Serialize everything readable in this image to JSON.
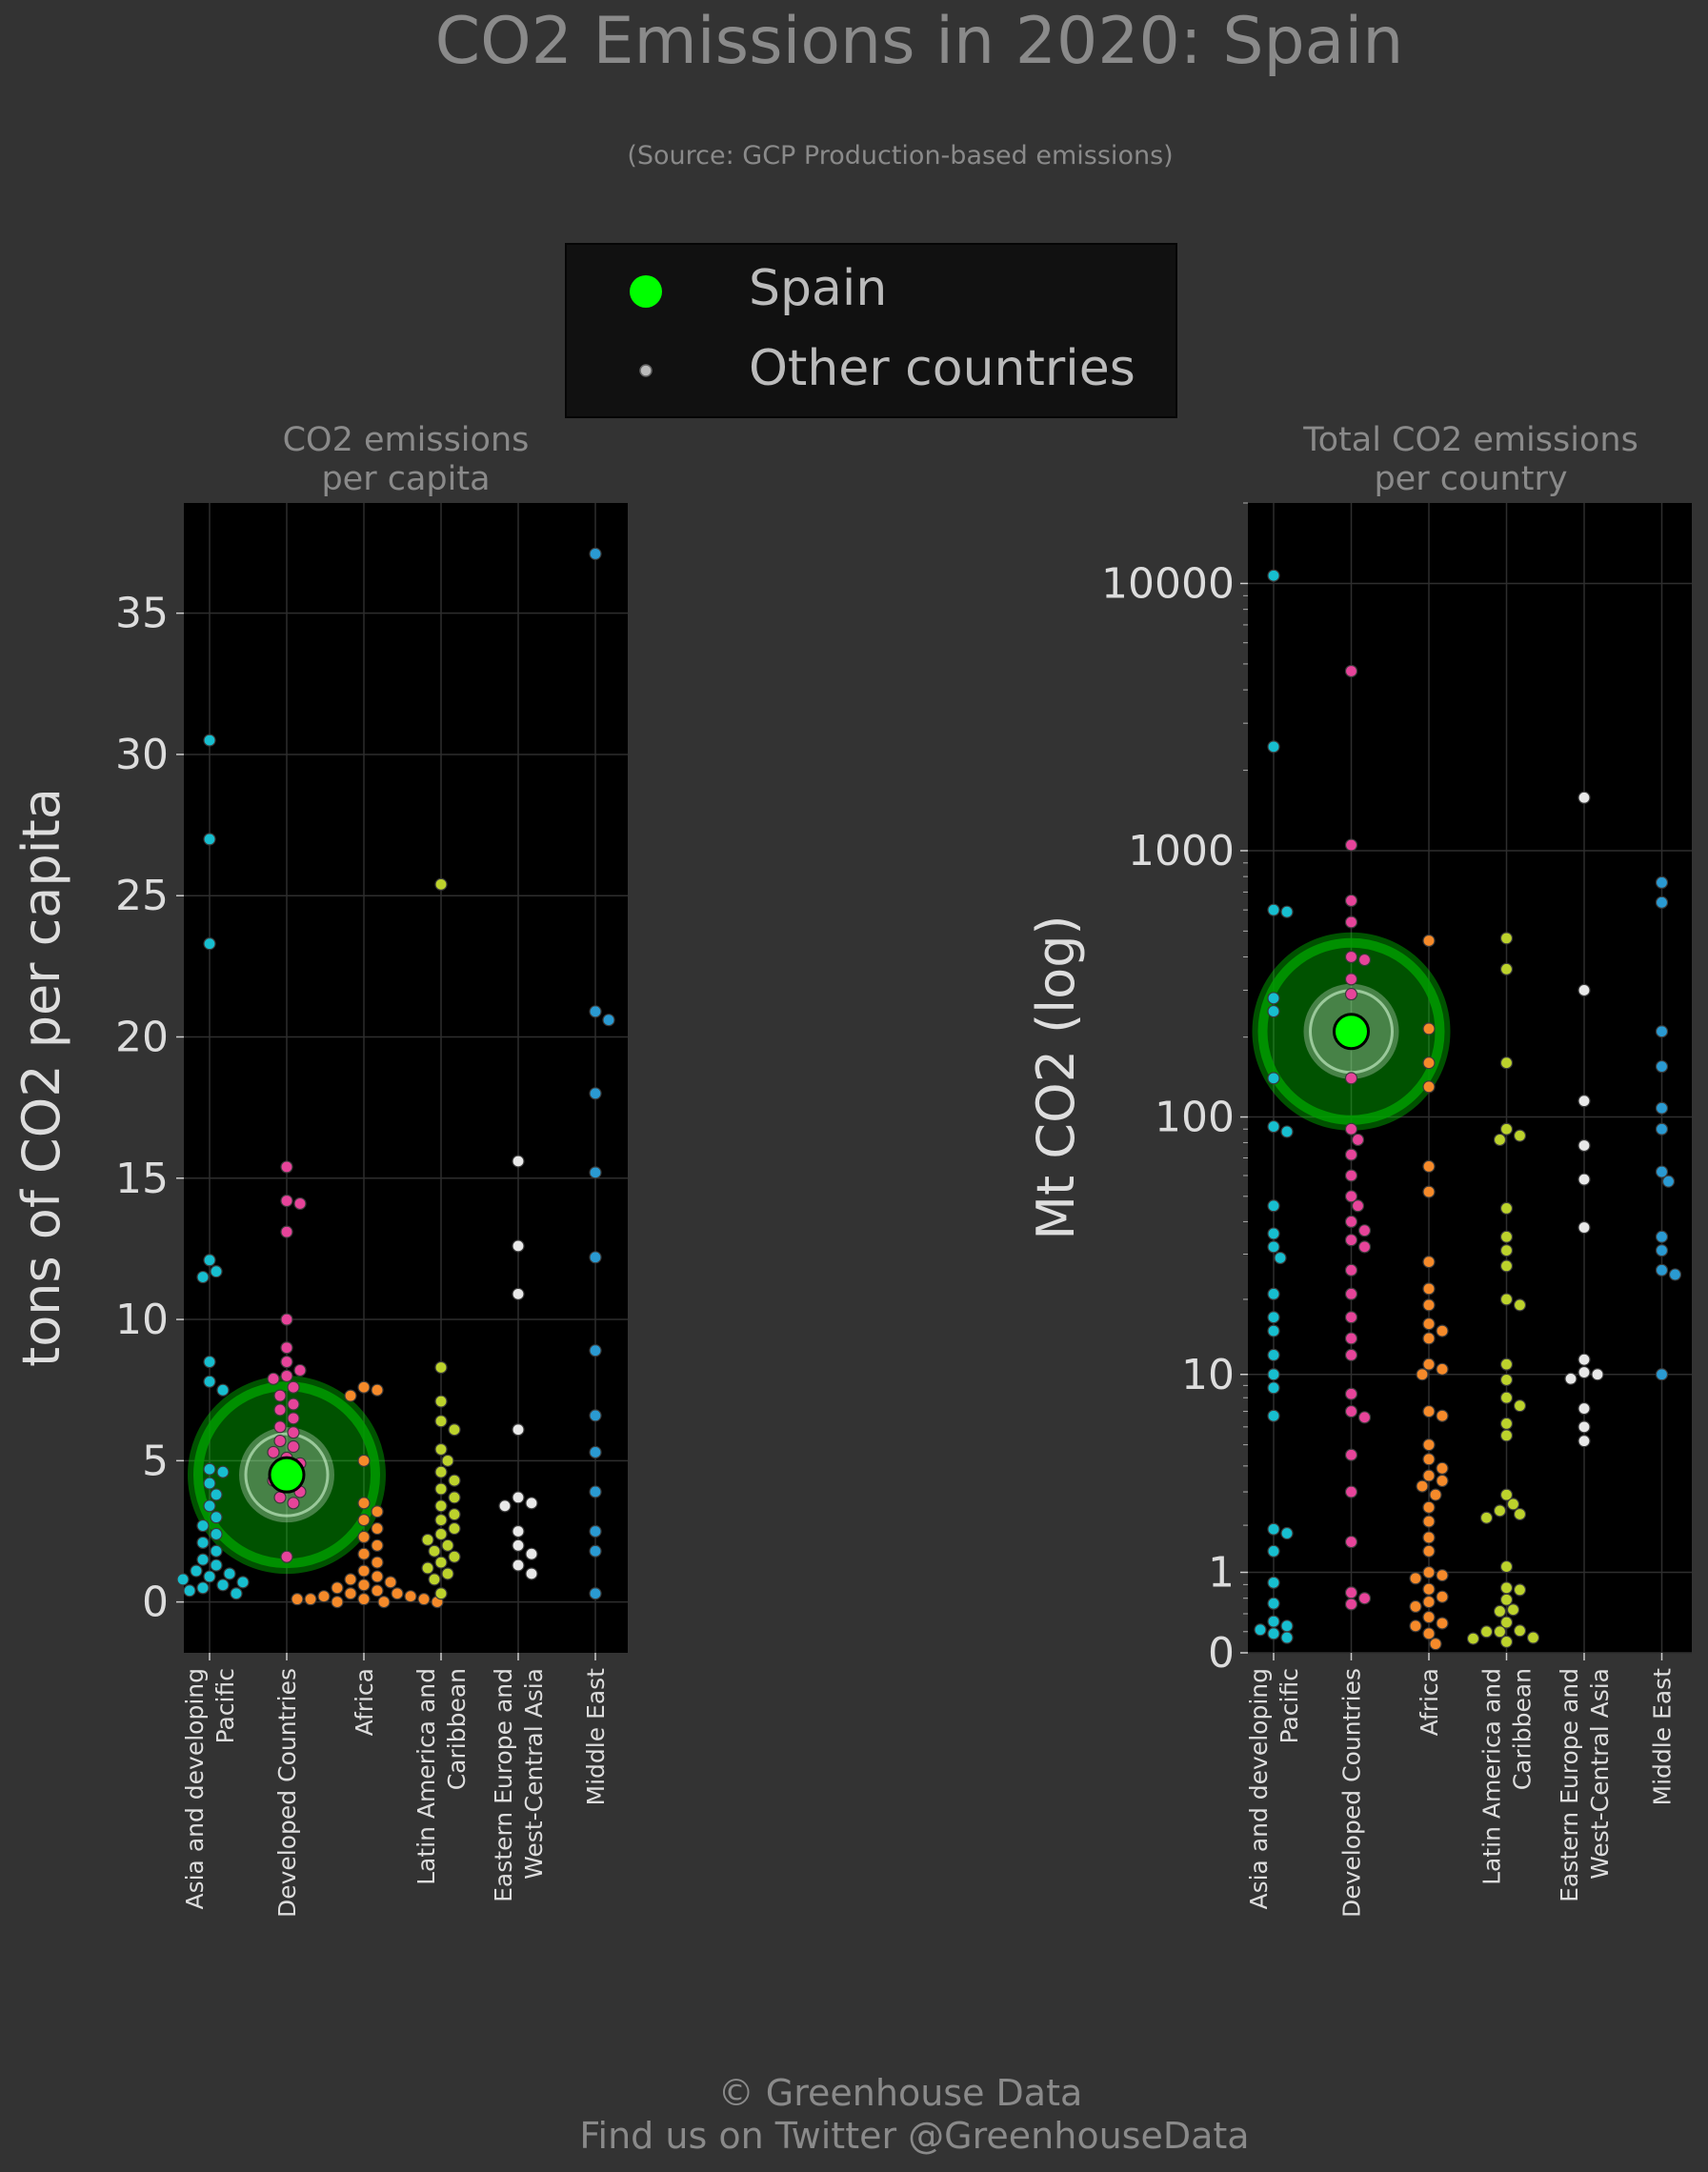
{
  "header": {
    "title": "CO2 Emissions in 2020: Spain",
    "subtitle": "(Source: GCP Production-based emissions)"
  },
  "legend": {
    "highlight_label": "Spain",
    "others_label": "Other countries",
    "highlight_color": "#00ff00",
    "others_color": "#bbbbbb"
  },
  "footer": {
    "line1": "© Greenhouse Data",
    "line2": "Find us on Twitter @GreenhouseData"
  },
  "colors": {
    "Asia and developing Pacific": "#17becf",
    "Developed Countries": "#e6449a",
    "Africa": "#f58a2a",
    "Latin America and Caribbean": "#bcd22c",
    "Eastern Europe and West-Central Asia": "#e8e8e8",
    "Middle East": "#2a9ad2"
  },
  "chart_data": [
    {
      "type": "scatter",
      "title": "CO2 emissions\nper capita",
      "ylabel": "tons of CO2 per capita",
      "yscale": "linear",
      "ylim": [
        -1.8,
        38.9
      ],
      "yticks": [
        0,
        5,
        10,
        15,
        20,
        25,
        30,
        35
      ],
      "ytick_labels": [
        "0",
        "5",
        "10",
        "15",
        "20",
        "25",
        "30",
        "35"
      ],
      "categories": [
        "Asia and developing\nPacific",
        "Developed Countries",
        "Africa",
        "Latin America and\nCaribbean",
        "Eastern Europe and\nWest-Central Asia",
        "Middle East"
      ],
      "highlight": {
        "label": "Spain",
        "category": 1,
        "value": 4.5
      },
      "series": [
        {
          "category": "Asia and developing Pacific",
          "values": [
            30.5,
            27.0,
            23.3,
            12.1,
            11.7,
            11.5,
            8.5,
            7.8,
            7.5,
            4.7,
            4.6,
            4.2,
            3.8,
            3.4,
            3.0,
            2.7,
            2.4,
            2.1,
            1.8,
            1.5,
            1.3,
            1.1,
            1.0,
            0.9,
            0.8,
            0.7,
            0.6,
            0.5,
            0.4,
            0.3
          ]
        },
        {
          "category": "Developed Countries",
          "values": [
            15.4,
            14.2,
            14.1,
            13.1,
            10.0,
            9.0,
            8.5,
            8.2,
            8.0,
            7.9,
            7.6,
            7.3,
            7.0,
            6.8,
            6.5,
            6.2,
            6.0,
            5.7,
            5.5,
            5.3,
            5.1,
            4.9,
            4.7,
            4.5,
            4.3,
            4.1,
            3.9,
            3.7,
            3.5,
            1.6
          ]
        },
        {
          "category": "Africa",
          "values": [
            7.6,
            7.5,
            7.3,
            5.0,
            3.5,
            3.2,
            2.9,
            2.6,
            2.3,
            2.0,
            1.7,
            1.4,
            1.1,
            0.9,
            0.8,
            0.7,
            0.6,
            0.5,
            0.4,
            0.3,
            0.3,
            0.2,
            0.2,
            0.1,
            0.1,
            0.1,
            0.1,
            0.0,
            0.0,
            0.0
          ]
        },
        {
          "category": "Latin America and Caribbean",
          "values": [
            25.4,
            8.3,
            7.1,
            6.4,
            6.1,
            5.4,
            5.0,
            4.6,
            4.3,
            4.0,
            3.7,
            3.4,
            3.1,
            2.9,
            2.6,
            2.4,
            2.2,
            2.0,
            1.8,
            1.6,
            1.4,
            1.2,
            1.0,
            0.8,
            0.3
          ]
        },
        {
          "category": "Eastern Europe and West-Central Asia",
          "values": [
            15.6,
            12.6,
            10.9,
            6.1,
            3.7,
            3.5,
            3.4,
            2.5,
            2.0,
            1.7,
            1.3,
            1.0
          ]
        },
        {
          "category": "Middle East",
          "values": [
            37.1,
            20.9,
            20.6,
            18.0,
            15.2,
            12.2,
            8.9,
            6.6,
            5.3,
            3.9,
            2.5,
            1.8,
            0.3
          ]
        }
      ]
    },
    {
      "type": "scatter",
      "title": "Total CO2 emissions\nper country",
      "ylabel": "Mt CO2 (log)",
      "yscale": "log",
      "ylim": [
        0,
        20000
      ],
      "yticks": [
        0,
        1,
        10,
        100,
        1000,
        10000
      ],
      "ytick_labels": [
        "0",
        "1",
        "10",
        "100",
        "1000",
        "10000"
      ],
      "categories": [
        "Asia and developing\nPacific",
        "Developed Countries",
        "Africa",
        "Latin America and\nCaribbean",
        "Eastern Europe and\nWest-Central Asia",
        "Middle East"
      ],
      "highlight": {
        "label": "Spain",
        "category": 1,
        "value": 210
      },
      "series": [
        {
          "category": "Asia and developing Pacific",
          "values": [
            10700,
            2450,
            600,
            590,
            280,
            250,
            140,
            92,
            88,
            46,
            36,
            32,
            29,
            21,
            17,
            15,
            12,
            10,
            8.8,
            6.7,
            1.9,
            1.8,
            1.4,
            0.83,
            0.53,
            0.31,
            0.26,
            0.22,
            0.18,
            0.14
          ]
        },
        {
          "category": "Developed Countries",
          "values": [
            4700,
            1050,
            650,
            540,
            400,
            390,
            330,
            290,
            230,
            140,
            90,
            82,
            72,
            60,
            50,
            46,
            40,
            37,
            34,
            32,
            26,
            21,
            17,
            14,
            12,
            8.3,
            7.0,
            6.6,
            4.5,
            3.0,
            1.6,
            0.68,
            0.6,
            0.52
          ]
        },
        {
          "category": "Africa",
          "values": [
            460,
            215,
            160,
            130,
            65,
            52,
            28,
            22,
            19,
            16,
            15,
            14,
            11,
            10.5,
            10,
            7.0,
            6.7,
            5.0,
            4.3,
            3.9,
            3.6,
            3.4,
            3.2,
            2.9,
            2.5,
            2.1,
            1.7,
            1.4,
            1.0,
            0.95,
            0.9,
            0.73,
            0.62,
            0.55,
            0.49,
            0.36,
            0.29,
            0.26,
            0.18,
            0.08
          ]
        },
        {
          "category": "Latin America and Caribbean",
          "values": [
            470,
            360,
            160,
            90,
            85,
            82,
            45,
            35,
            31,
            27,
            20,
            19,
            11,
            9.5,
            8.0,
            7.4,
            6.2,
            5.5,
            2.9,
            2.6,
            2.4,
            2.3,
            2.2,
            1.1,
            0.75,
            0.72,
            0.58,
            0.45,
            0.43,
            0.3,
            0.21,
            0.2,
            0.2,
            0.14,
            0.13,
            0.1
          ]
        },
        {
          "category": "Eastern Europe and West-Central Asia",
          "values": [
            1580,
            300,
            115,
            78,
            58,
            38,
            11.5,
            10.2,
            10,
            9.6,
            7.2,
            6.0,
            5.2
          ]
        },
        {
          "category": "Middle East",
          "values": [
            760,
            640,
            210,
            155,
            108,
            90,
            62,
            57,
            35,
            31,
            26,
            25,
            10
          ]
        }
      ]
    }
  ]
}
